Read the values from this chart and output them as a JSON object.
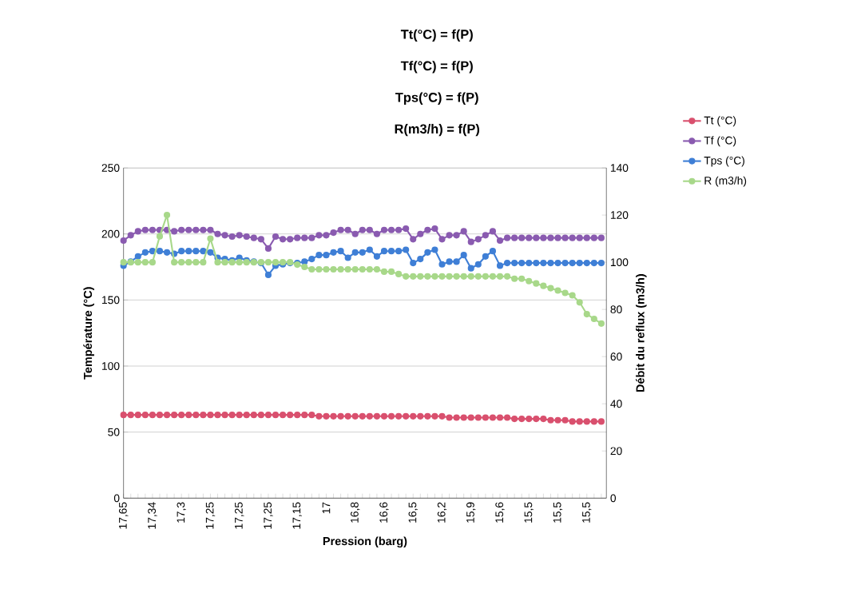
{
  "chart_data": {
    "type": "line",
    "title": "Tt(°C) = f(P)",
    "annotations": [
      "Tf(°C) = f(P)",
      "Tps(°C) = f(P)",
      "R(m3/h) = f(P)"
    ],
    "xlabel": "Pression (barg)",
    "ylabel": "Température (°C)",
    "y2label": "Débit du reflux (m3/h)",
    "categories": [
      "17,65",
      null,
      null,
      null,
      "17,34",
      null,
      null,
      null,
      "17,3",
      null,
      null,
      null,
      "17,25",
      null,
      null,
      null,
      "17,25",
      null,
      null,
      null,
      "17,25",
      null,
      null,
      null,
      "17,15",
      null,
      null,
      null,
      "17",
      null,
      null,
      null,
      "16,8",
      null,
      null,
      null,
      "16,6",
      null,
      null,
      null,
      "16,5",
      null,
      null,
      null,
      "16,2",
      null,
      null,
      null,
      "15,9",
      null,
      null,
      null,
      "15,6",
      null,
      null,
      null,
      "15,5",
      null,
      null,
      null,
      "15,5",
      null,
      null,
      null,
      "15,5",
      null,
      null
    ],
    "series": [
      {
        "name": "Tt (°C)",
        "color": "#d9506e",
        "values": [
          63,
          63,
          63,
          63,
          63,
          63,
          63,
          63,
          63,
          63,
          63,
          63,
          63,
          63,
          63,
          63,
          63,
          63,
          63,
          63,
          63,
          63,
          63,
          63,
          63,
          63,
          63,
          62,
          62,
          62,
          62,
          62,
          62,
          62,
          62,
          62,
          62,
          62,
          62,
          62,
          62,
          62,
          62,
          62,
          62,
          61,
          61,
          61,
          61,
          61,
          61,
          61,
          61,
          61,
          60,
          60,
          60,
          60,
          60,
          59,
          59,
          59,
          58,
          58,
          58,
          58,
          58
        ]
      },
      {
        "name": "Tf (°C)",
        "color": "#8a5bb0",
        "values": [
          195,
          199,
          202,
          203,
          203,
          203,
          203,
          202,
          203,
          203,
          203,
          203,
          203,
          200,
          199,
          198,
          199,
          198,
          197,
          196,
          189,
          198,
          196,
          196,
          197,
          197,
          197,
          199,
          199,
          201,
          203,
          203,
          200,
          203,
          203,
          200,
          203,
          203,
          203,
          204,
          196,
          200,
          203,
          204,
          196,
          199,
          199,
          202,
          194,
          196,
          199,
          202,
          195,
          197,
          197,
          197,
          197,
          197,
          197,
          197,
          197,
          197,
          197,
          197,
          197,
          197,
          197
        ]
      },
      {
        "name": "Tps (°C)",
        "color": "#3f7fd6",
        "values": [
          176,
          179,
          183,
          186,
          187,
          187,
          186,
          185,
          187,
          187,
          187,
          187,
          186,
          182,
          181,
          180,
          182,
          180,
          179,
          178,
          169,
          176,
          177,
          178,
          178,
          179,
          181,
          184,
          184,
          186,
          187,
          182,
          186,
          186,
          188,
          183,
          187,
          187,
          187,
          188,
          178,
          181,
          186,
          188,
          177,
          179,
          179,
          184,
          174,
          177,
          183,
          187,
          176,
          178,
          178,
          178,
          178,
          178,
          178,
          178,
          178,
          178,
          178,
          178,
          178,
          178,
          178
        ]
      },
      {
        "name": "R (m3/h)",
        "color": "#a8d88a",
        "axis": "y2",
        "values": [
          100,
          100,
          100,
          100,
          100,
          111,
          120,
          100,
          100,
          100,
          100,
          100,
          110,
          100,
          100,
          100,
          100,
          100,
          100,
          100,
          100,
          100,
          100,
          100,
          99,
          98,
          97,
          97,
          97,
          97,
          97,
          97,
          97,
          97,
          97,
          97,
          96,
          96,
          95,
          94,
          94,
          94,
          94,
          94,
          94,
          94,
          94,
          94,
          94,
          94,
          94,
          94,
          94,
          94,
          93,
          93,
          92,
          91,
          90,
          89,
          88,
          87,
          86,
          83,
          78,
          76,
          74
        ]
      }
    ],
    "ylim": [
      0,
      250
    ],
    "yticks": [
      0,
      50,
      100,
      150,
      200,
      250
    ],
    "y2lim": [
      0,
      140
    ],
    "y2ticks": [
      0,
      20,
      40,
      60,
      80,
      100,
      120,
      140
    ],
    "grid": "y",
    "legend": "right",
    "marker": "circle",
    "line_style": "solid"
  }
}
